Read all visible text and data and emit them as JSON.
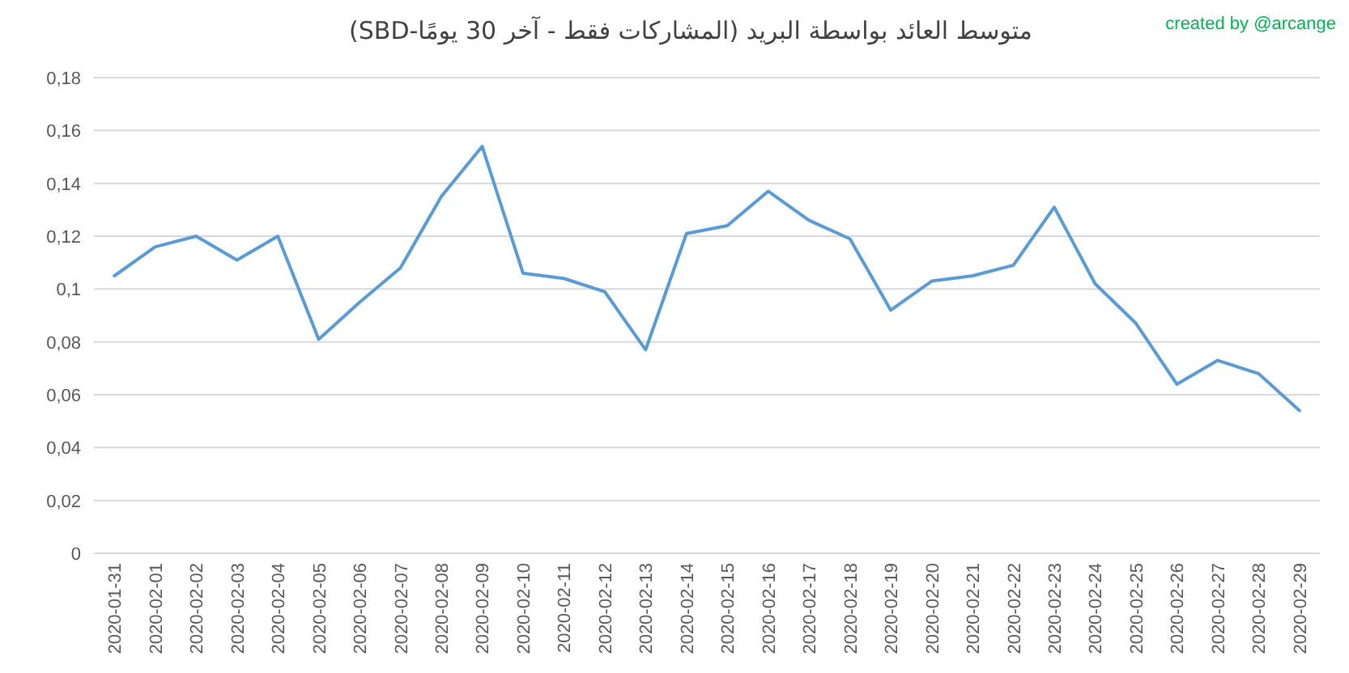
{
  "chart_data": {
    "type": "line",
    "title": "متوسط العائد بواسطة البريد (المشاركات فقط - آخر 30 يومًا-SBD)",
    "annotations": [
      "created by @arcange"
    ],
    "categories": [
      "2020-01-31",
      "2020-02-01",
      "2020-02-02",
      "2020-02-03",
      "2020-02-04",
      "2020-02-05",
      "2020-02-06",
      "2020-02-07",
      "2020-02-08",
      "2020-02-09",
      "2020-02-10",
      "2020-02-11",
      "2020-02-12",
      "2020-02-13",
      "2020-02-14",
      "2020-02-15",
      "2020-02-16",
      "2020-02-17",
      "2020-02-18",
      "2020-02-19",
      "2020-02-20",
      "2020-02-21",
      "2020-02-22",
      "2020-02-23",
      "2020-02-24",
      "2020-02-25",
      "2020-02-26",
      "2020-02-27",
      "2020-02-28",
      "2020-02-29"
    ],
    "series": [
      {
        "color": "#5b9bd5",
        "values": [
          0.105,
          0.116,
          0.12,
          0.111,
          0.12,
          0.081,
          0.095,
          0.108,
          0.135,
          0.154,
          0.106,
          0.104,
          0.099,
          0.077,
          0.121,
          0.124,
          0.137,
          0.126,
          0.119,
          0.092,
          0.103,
          0.105,
          0.109,
          0.131,
          0.102,
          0.087,
          0.064,
          0.073,
          0.068,
          0.054
        ]
      }
    ],
    "ylim": [
      0,
      0.18
    ],
    "yticks": [
      0,
      {
        "value": 0.02,
        "label": "0,02"
      },
      {
        "value": 0.04,
        "label": "0,04"
      },
      {
        "value": 0.06,
        "label": "0,06"
      },
      {
        "value": 0.08,
        "label": "0,08"
      },
      {
        "value": 0.1,
        "label": "0,1"
      },
      {
        "value": 0.12,
        "label": "0,12"
      },
      {
        "value": 0.14,
        "label": "0,14"
      },
      {
        "value": 0.16,
        "label": "0,16"
      },
      {
        "value": 0.18,
        "label": "0,18"
      }
    ],
    "grid": "y",
    "marker": "none",
    "line_style": "solid"
  }
}
